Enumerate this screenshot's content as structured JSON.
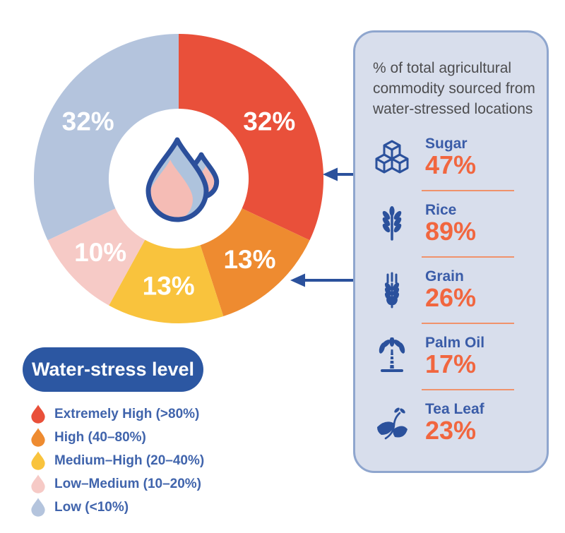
{
  "chart_data": {
    "type": "pie",
    "variant": "donut",
    "title": "Water-stress level",
    "values_unit": "%",
    "direction": "clockwise",
    "start_angle_deg": 0,
    "legend_position": "bottom-left",
    "center_icon": "water-drops",
    "segments": [
      {
        "label": "Extremely High (>80%)",
        "value": 32,
        "display": "32%",
        "color": "#E9503A"
      },
      {
        "label": "High (40–80%)",
        "value": 13,
        "display": "13%",
        "color": "#EE8B30"
      },
      {
        "label": "Medium–High (20–40%)",
        "value": 13,
        "display": "13%",
        "color": "#F9C33D"
      },
      {
        "label": "Low–Medium (10–20%)",
        "value": 10,
        "display": "10%",
        "color": "#F6CAC6"
      },
      {
        "label": "Low (<10%)",
        "value": 32,
        "display": "32%",
        "color": "#B4C4DD"
      }
    ]
  },
  "panel": {
    "heading": "% of total agricultural commodity sourced from water-stressed locations",
    "items": [
      {
        "name": "Sugar",
        "value": 47,
        "display": "47%",
        "icon": "sugar-cubes-icon"
      },
      {
        "name": "Rice",
        "value": 89,
        "display": "89%",
        "icon": "rice-icon"
      },
      {
        "name": "Grain",
        "value": 26,
        "display": "26%",
        "icon": "grain-icon"
      },
      {
        "name": "Palm Oil",
        "value": 17,
        "display": "17%",
        "icon": "palm-oil-icon"
      },
      {
        "name": "Tea Leaf",
        "value": 23,
        "display": "23%",
        "icon": "tea-leaf-icon"
      }
    ]
  },
  "colors": {
    "dark_blue": "#2B519C",
    "accent_value": "#F1663F",
    "separator": "#F0926B",
    "panel_bg": "#D8DEEC",
    "panel_border": "#8FA6CE",
    "heading_text": "#4D4D4F",
    "legend_text": "#4064AC",
    "pill_bg": "#2C57A2",
    "drop_fill_blue": "#AEC3DD",
    "drop_fill_pink": "#F5BCB5"
  }
}
